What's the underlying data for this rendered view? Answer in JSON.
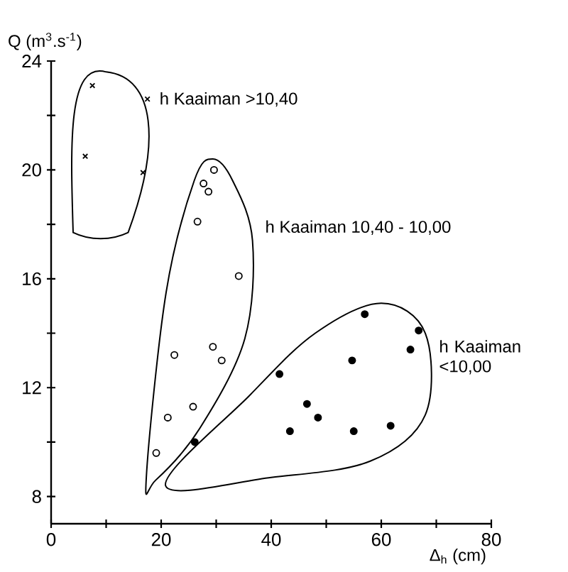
{
  "chart_data": {
    "type": "scatter",
    "xlabel": "Δ$_{h}$ (cm)",
    "ylabel": "Q (m$^{3}$.s$^{-1}$)",
    "xlim": [
      0,
      80
    ],
    "ylim": [
      7,
      24
    ],
    "xticks": [
      0,
      {
        "value": 10,
        "label": null
      },
      20,
      {
        "value": 30,
        "label": null
      },
      40,
      {
        "value": 50,
        "label": null
      },
      60,
      {
        "value": 70,
        "label": null
      },
      80
    ],
    "yticks": [
      8,
      {
        "value": 10,
        "label": null
      },
      12,
      {
        "value": 14,
        "label": null
      },
      16,
      {
        "value": 18,
        "label": null
      },
      20,
      {
        "value": 22,
        "label": null
      },
      24
    ],
    "grid": false,
    "series": [
      {
        "color": "#000000",
        "marker": "cross",
        "x": [
          7.5,
          17.5,
          6.2,
          16.7
        ],
        "values": [
          23.1,
          22.6,
          20.5,
          19.9
        ]
      },
      {
        "color": "#ffffff",
        "marker": "circle",
        "x": [
          29.6,
          27.7,
          28.6,
          26.6,
          34.1,
          22.4,
          29.4,
          31.0,
          25.8,
          21.2,
          19.1
        ],
        "values": [
          20.0,
          19.5,
          19.2,
          18.1,
          16.1,
          13.2,
          13.5,
          13.0,
          11.3,
          10.9,
          9.6
        ]
      },
      {
        "color": "#000000",
        "marker": "circle",
        "x": [
          26.1,
          41.5,
          57.0,
          66.8,
          65.3,
          54.7,
          46.5,
          48.5,
          43.4,
          55.0,
          61.7
        ],
        "values": [
          10.0,
          12.5,
          14.7,
          14.1,
          13.4,
          13.0,
          11.4,
          10.9,
          10.4,
          10.4,
          10.6
        ]
      }
    ],
    "annotations": [
      "h Kaaiman >10,40",
      "h Kaaiman 10,40 - 10,00",
      "h Kaaiman <10,00"
    ]
  }
}
